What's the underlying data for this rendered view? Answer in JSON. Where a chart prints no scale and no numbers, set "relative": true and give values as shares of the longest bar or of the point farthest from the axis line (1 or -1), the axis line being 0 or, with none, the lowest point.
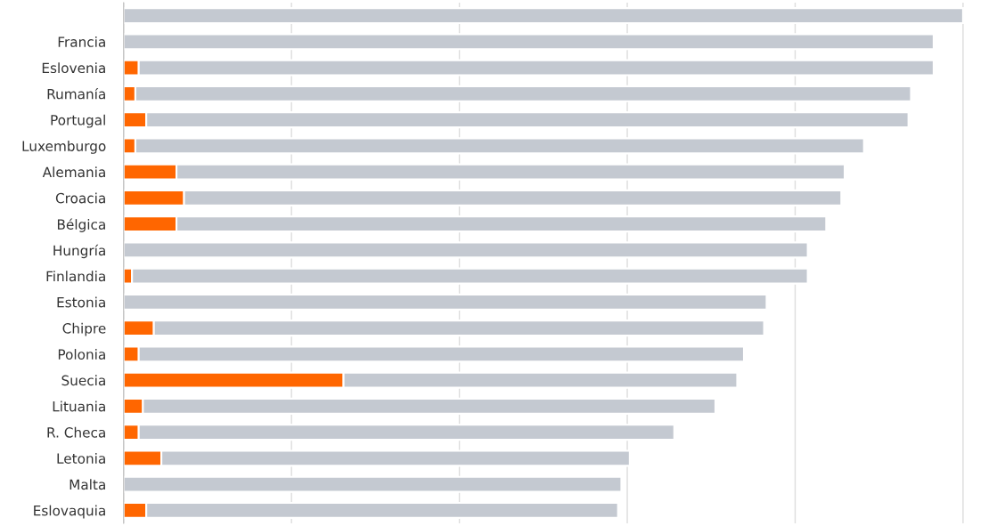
{
  "chart_data": {
    "type": "bar",
    "orientation": "horizontal",
    "stacked": true,
    "relative": true,
    "grid": "x",
    "categories": [
      null,
      "Francia",
      "Eslovenia",
      "Rumanía",
      "Portugal",
      "Luxemburgo",
      "Alemania",
      "Croacia",
      "Bélgica",
      "Hungría",
      "Finlandia",
      "Estonia",
      "Chipre",
      "Polonia",
      "Suecia",
      "Lituania",
      "R. Checa",
      "Letonia",
      "Malta",
      "Eslovaquia"
    ],
    "series": [
      {
        "color": "#ff6600",
        "values": [
          null,
          null,
          0.018,
          0.014,
          0.027,
          0.014,
          0.063,
          0.072,
          0.063,
          null,
          0.01,
          null,
          0.036,
          0.018,
          0.262,
          0.023,
          0.018,
          0.045,
          null,
          0.027
        ]
      },
      {
        "color": "#c4c9d1",
        "values": [
          1.0,
          0.965,
          0.947,
          0.924,
          0.908,
          0.868,
          0.796,
          0.783,
          0.774,
          0.815,
          0.805,
          0.766,
          0.727,
          0.721,
          0.469,
          0.682,
          0.638,
          0.558,
          0.593,
          0.562
        ]
      }
    ]
  }
}
